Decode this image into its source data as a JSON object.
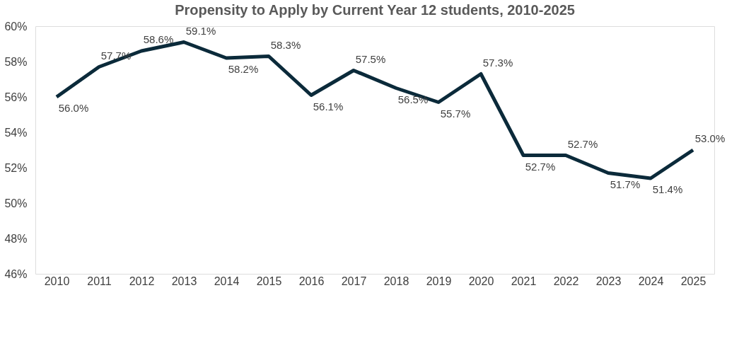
{
  "chart_data": {
    "type": "line",
    "title": "Propensity to Apply by Current Year 12 students, 2010-2025",
    "categories": [
      "2010",
      "2011",
      "2012",
      "2013",
      "2014",
      "2015",
      "2016",
      "2017",
      "2018",
      "2019",
      "2020",
      "2021",
      "2022",
      "2023",
      "2024",
      "2025"
    ],
    "series": [
      {
        "color": "#0b2a3a",
        "values": [
          56.0,
          57.7,
          58.6,
          59.1,
          58.2,
          58.3,
          56.1,
          57.5,
          56.5,
          55.7,
          57.3,
          52.7,
          52.7,
          51.7,
          51.4,
          53.0
        ],
        "value_labels": [
          "56.0%",
          "57.7%",
          "58.6%",
          "59.1%",
          "58.2%",
          "58.3%",
          "56.1%",
          "57.5%",
          "56.5%",
          "55.7%",
          "57.3%",
          "52.7%",
          "52.7%",
          "51.7%",
          "51.4%",
          "53.0%"
        ]
      }
    ],
    "ylim": [
      46,
      60
    ],
    "yticks": [
      {
        "value": 46,
        "label": "46%"
      },
      {
        "value": 48,
        "label": "48%"
      },
      {
        "value": 50,
        "label": "50%"
      },
      {
        "value": 52,
        "label": "52%"
      },
      {
        "value": 54,
        "label": "54%"
      },
      {
        "value": 56,
        "label": "56%"
      },
      {
        "value": 58,
        "label": "58%"
      },
      {
        "value": 60,
        "label": "60%"
      }
    ],
    "grid": false,
    "legend": false,
    "marker": "none",
    "line_style": "solid"
  }
}
